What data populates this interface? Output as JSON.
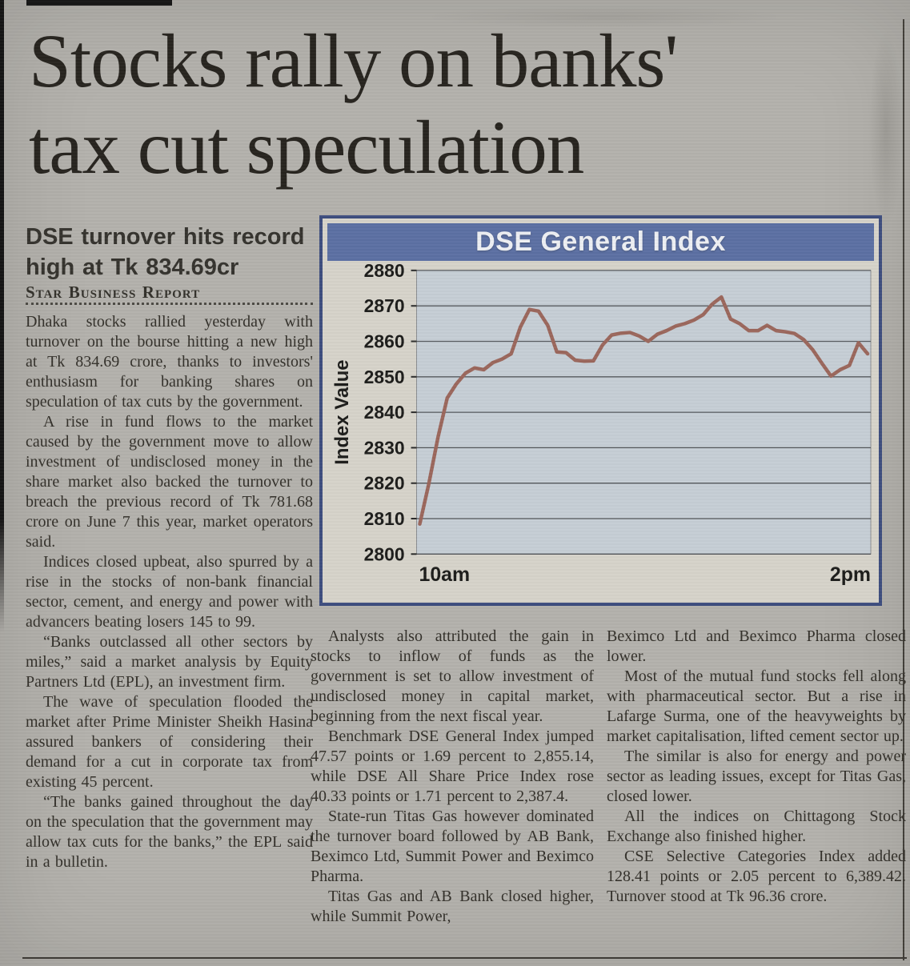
{
  "article": {
    "headline_line1": "Stocks rally on banks'",
    "headline_line2": "tax cut speculation"
  },
  "left_column": {
    "subhead": "DSE turnover hits record high at Tk 834.69cr",
    "byline": "Star Business Report",
    "paragraphs": [
      "Dhaka stocks rallied yesterday with turnover on the bourse hitting a new high at Tk 834.69 crore, thanks to investors' enthusiasm for banking shares on speculation of tax cuts by the government.",
      "A rise in fund flows to the market caused by the government move to allow investment of undisclosed money in the share market also backed the turnover to breach the previous record of Tk 781.68 crore on June 7 this year, market operators said.",
      "Indices closed upbeat, also spurred by a rise in the stocks of non-bank financial sector, cement, and energy and power with advancers beating losers 145 to 99.",
      "“Banks outclassed all other sectors by miles,” said a market analysis by Equity Partners Ltd (EPL), an investment firm.",
      "The wave of speculation flooded the market after Prime Minister Sheikh Hasina assured bankers of considering their demand for a cut in corporate tax from existing 45 percent.",
      "“The banks gained throughout the day on the speculation that the government may allow tax cuts for the banks,” the EPL said in a bulletin."
    ]
  },
  "middle_column": {
    "paragraphs": [
      "Analysts also attributed the gain in stocks to inflow of funds as the government is set to allow investment of undisclosed money in capital market, beginning from the next fiscal year.",
      "Benchmark DSE General Index jumped 47.57 points or 1.69 percent to 2,855.14, while DSE All Share Price Index rose 40.33 points or 1.71 percent to 2,387.4.",
      "State-run Titas Gas however dominated the turnover board followed by AB Bank, Beximco Ltd, Summit Power and Beximco Pharma.",
      "Titas Gas and AB Bank closed higher, while Summit Power,"
    ]
  },
  "right_column": {
    "paragraphs": [
      "Beximco Ltd and Beximco Pharma closed lower.",
      "Most of the mutual fund stocks fell along with pharmaceutical sector. But a rise in Lafarge Surma, one of the heavyweights by market capitalisation, lifted cement sector up.",
      "The similar is also for energy and power sector as leading issues, except for Titas Gas, closed lower.",
      "All the indices on Chittagong Stock Exchange also finished higher.",
      "CSE Selective Categories Index added 128.41 points or 2.05 percent to 6,389.42. Turnover stood at Tk 96.36 crore."
    ]
  },
  "chart_data": {
    "type": "line",
    "title": "DSE General Index",
    "ylabel": "Index Value",
    "xlabel": "",
    "x_axis_labels": [
      "10am",
      "2pm"
    ],
    "y_ticks": [
      2880,
      2870,
      2860,
      2850,
      2840,
      2830,
      2820,
      2810,
      2800
    ],
    "ylim": [
      2800,
      2880
    ],
    "grid": true,
    "legend": false,
    "series": [
      {
        "name": "DSE General Index",
        "values": [
          2808.5,
          2820,
          2833,
          2844,
          2848,
          2851,
          2852.5,
          2852,
          2854,
          2855,
          2856.5,
          2864,
          2869,
          2868.5,
          2864.5,
          2857,
          2856.8,
          2854.7,
          2854.4,
          2854.5,
          2859,
          2861.8,
          2862.3,
          2862.5,
          2861.5,
          2860,
          2862,
          2863,
          2864.3,
          2865,
          2866,
          2867.5,
          2870.5,
          2872.5,
          2866.3,
          2865,
          2863,
          2863,
          2864.5,
          2863,
          2862.7,
          2862.2,
          2860.5,
          2857.6,
          2853.8,
          2850.2,
          2852,
          2853.2,
          2859.6,
          2856.5
        ]
      }
    ]
  },
  "colors": {
    "paper": "#b3b1ac",
    "ink": "#33302a",
    "headline_ink": "#27241f",
    "chart_border": "#3d4d7e",
    "chart_header_bg": "#5c70a3",
    "chart_header_text": "#edeff3",
    "chart_panel_bg": "#d6d3ca",
    "chart_plot_bg": "#c6ced5",
    "chart_grid": "#55585c",
    "chart_line": "#9b675c"
  }
}
